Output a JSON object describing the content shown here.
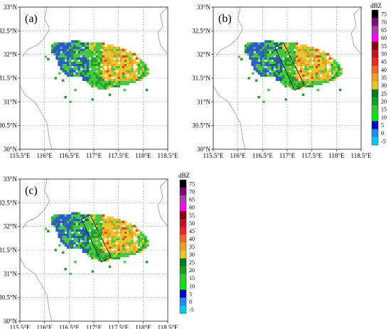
{
  "panels": [
    {
      "id": "a",
      "label": "(a)",
      "box": false,
      "colorbar": false
    },
    {
      "id": "b",
      "label": "(b)",
      "box": true,
      "colorbar": true
    },
    {
      "id": "c",
      "label": "(c)",
      "box": true,
      "colorbar": true
    }
  ],
  "axes": {
    "x_ticks": [
      "115.5°E",
      "116°E",
      "116.5°E",
      "117°E",
      "117.5°E",
      "118°E",
      "118.5°E"
    ],
    "y_ticks": [
      "33°N",
      "32.5°N",
      "32°N",
      "31.5°N",
      "31°N",
      "30.5°N",
      "30°N"
    ],
    "lon_range": [
      115.5,
      118.5
    ],
    "lat_range": [
      30,
      33
    ],
    "grid": "dashed"
  },
  "colorbar": {
    "title": "dBZ",
    "levels": [
      "75",
      "70",
      "65",
      "60",
      "55",
      "50",
      "45",
      "40",
      "35",
      "30",
      "25",
      "20",
      "15",
      "10",
      "5",
      "0",
      "-5"
    ],
    "colors": [
      "#000000",
      "#7a0a7a",
      "#a83ca8",
      "#ff00ff",
      "#8b0000",
      "#c0141e",
      "#e62828",
      "#f06430",
      "#e6a020",
      "#e6c820",
      "#007a1e",
      "#14a028",
      "#32c832",
      "#00e600",
      "#0000c8",
      "#1e8cf0",
      "#00c8f0"
    ]
  },
  "echo_colors": {
    "weak_blue": "#3058d0",
    "light_green": "#46c846",
    "green": "#1fa02a",
    "dark_green": "#0a7a1e",
    "yellow": "#e8c832",
    "orange": "#e6a020",
    "red": "#e04028"
  }
}
